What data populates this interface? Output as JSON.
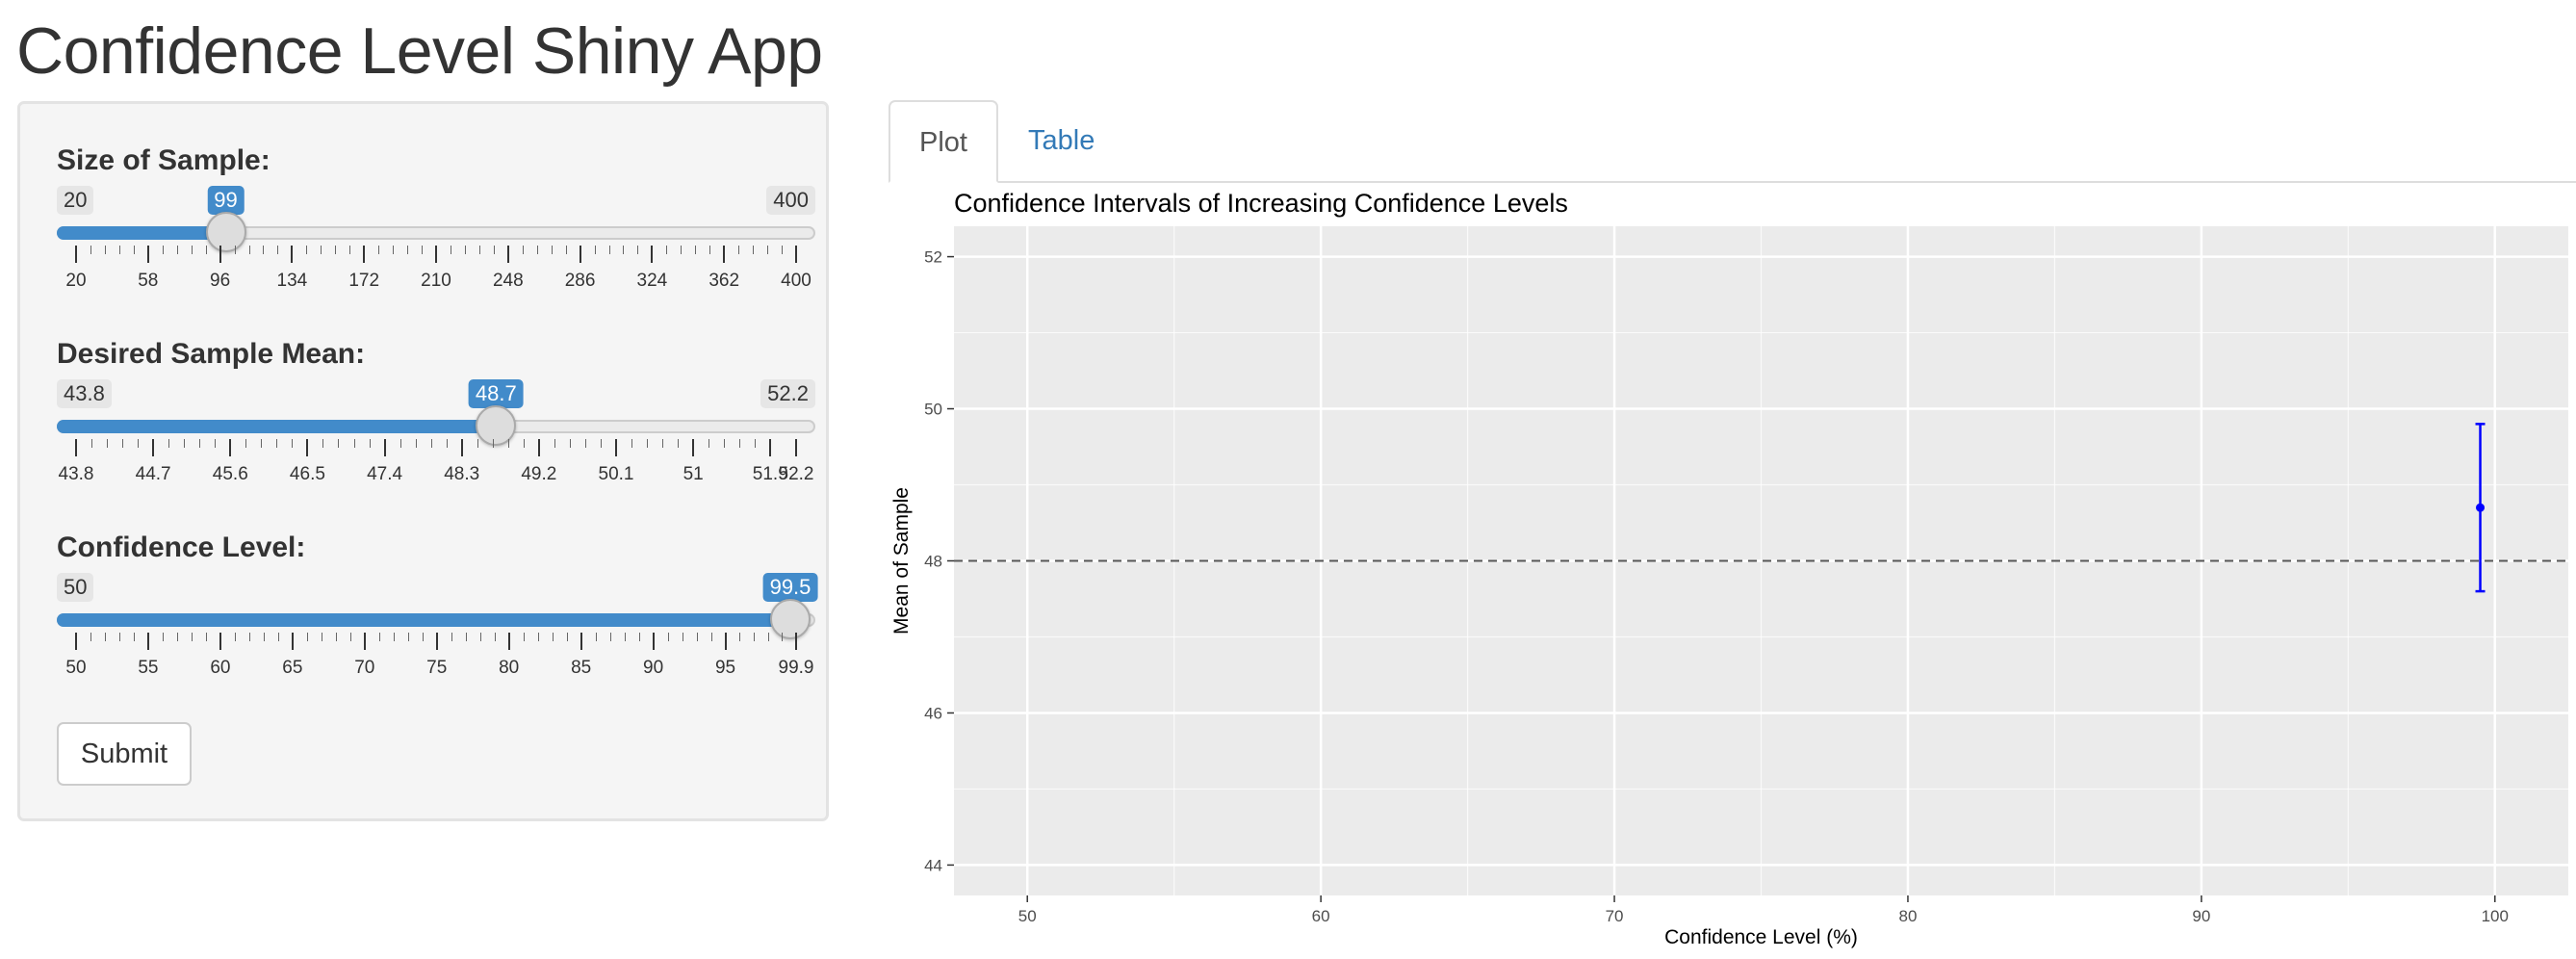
{
  "app": {
    "title": "Confidence Level Shiny App"
  },
  "sidebar": {
    "sample_size": {
      "label": "Size of Sample:",
      "min": 20,
      "max": 400,
      "value": 99,
      "min_label": "20",
      "max_label": "400",
      "value_label": "99",
      "ticks": [
        "20",
        "58",
        "96",
        "134",
        "172",
        "210",
        "248",
        "286",
        "324",
        "362",
        "400"
      ]
    },
    "sample_mean": {
      "label": "Desired Sample Mean:",
      "min": 43.8,
      "max": 52.2,
      "value": 48.7,
      "min_label": "43.8",
      "max_label": "52.2",
      "value_label": "48.7",
      "ticks": [
        "43.8",
        "44.7",
        "45.6",
        "46.5",
        "47.4",
        "48.3",
        "49.2",
        "50.1",
        "51",
        "51.9",
        "52.2"
      ]
    },
    "confidence": {
      "label": "Confidence Level:",
      "min": 50,
      "max": 99.9,
      "value": 99.5,
      "min_label": "50",
      "max_label": "",
      "value_label": "99.5",
      "ticks": [
        "50",
        "55",
        "60",
        "65",
        "70",
        "75",
        "80",
        "85",
        "90",
        "95",
        "99.9"
      ]
    },
    "submit_label": "Submit"
  },
  "tabs": [
    {
      "label": "Plot",
      "active": true
    },
    {
      "label": "Table",
      "active": false
    }
  ],
  "chart_data": {
    "type": "scatter",
    "title": "Confidence Intervals of Increasing Confidence Levels",
    "xlabel": "Confidence Level (%)",
    "ylabel": "Mean of Sample",
    "xlim": [
      47.5,
      102.5
    ],
    "ylim": [
      43.6,
      52.4
    ],
    "x_ticks": [
      50,
      60,
      70,
      80,
      90,
      100
    ],
    "y_ticks": [
      44,
      46,
      48,
      50,
      52
    ],
    "grid": true,
    "reference_line_y": 48,
    "points": [
      {
        "x": 99.5,
        "y": 48.7,
        "lower": 47.6,
        "upper": 49.8
      }
    ],
    "colors": {
      "panel": "#ebebeb",
      "grid": "#ffffff",
      "point": "#0000ff",
      "reference": "#555555"
    }
  }
}
